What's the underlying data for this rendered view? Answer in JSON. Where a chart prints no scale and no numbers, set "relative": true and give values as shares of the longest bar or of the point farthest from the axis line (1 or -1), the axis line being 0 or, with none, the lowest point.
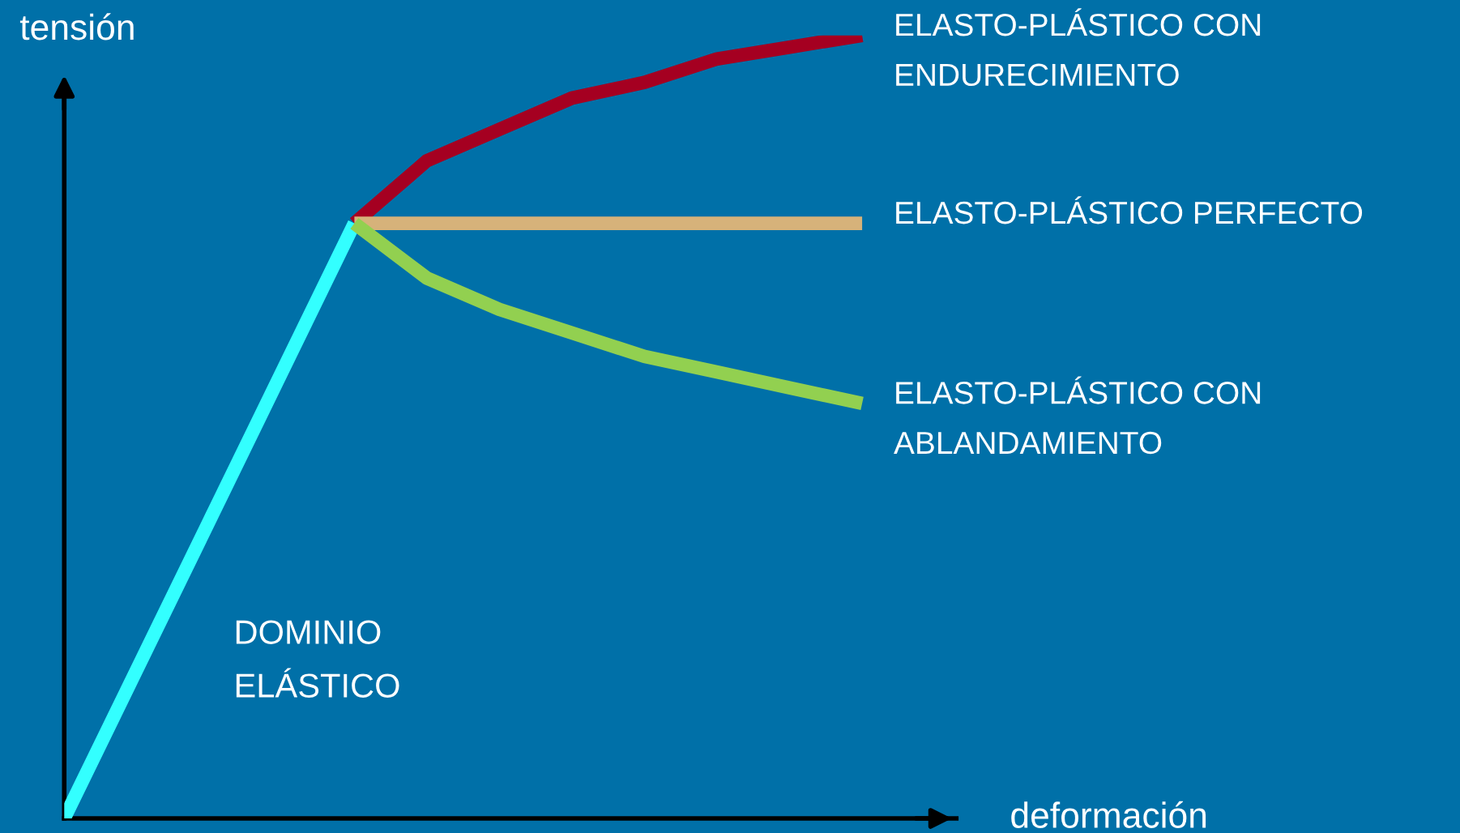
{
  "chart_data": {
    "type": "line",
    "relative": true,
    "xlabel": "deformación",
    "ylabel": "tensión",
    "annotations": [
      "DOMINIO\nELÁSTICO"
    ],
    "categories": [
      null,
      null,
      null,
      null,
      null,
      null,
      null,
      null,
      null,
      null,
      null,
      null
    ],
    "series": [
      {
        "color": "#33ffff",
        "values": [
          0,
          0.19,
          0.38,
          0.57,
          0.76,
          null,
          null,
          null,
          null,
          null,
          null,
          null
        ]
      },
      {
        "name": "ELASTO-PLÁSTICO CON\nENDURECIMIENTO",
        "color": "#a50021",
        "values": [
          null,
          null,
          null,
          null,
          0.76,
          0.84,
          0.88,
          0.92,
          0.94,
          0.97,
          0.985,
          1
        ]
      },
      {
        "name": "ELASTO-PLÁSTICO PERFECTO",
        "color": "#d6b27a",
        "values": [
          null,
          null,
          null,
          null,
          0.76,
          0.76,
          0.76,
          0.76,
          0.76,
          0.76,
          0.76,
          0.76
        ]
      },
      {
        "name": "ELASTO-PLÁSTICO CON\nABLANDAMIENTO",
        "color": "#92d050",
        "values": [
          null,
          null,
          null,
          null,
          0.76,
          0.69,
          0.65,
          0.62,
          0.59,
          0.57,
          0.55,
          0.53
        ]
      }
    ],
    "legend": false,
    "marker": "none",
    "line_style": "solid"
  }
}
